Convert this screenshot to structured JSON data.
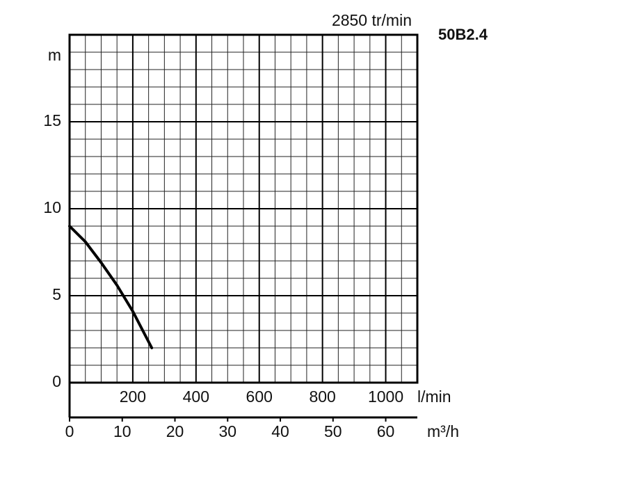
{
  "chart_data": {
    "type": "line",
    "title": "50B2.4",
    "subtitle": "2850 tr/min",
    "y_label": "m",
    "x_label": "l/min",
    "x2_label": "m³/h",
    "x": [
      0,
      50,
      100,
      150,
      200,
      260
    ],
    "series": [
      {
        "color": "#000000",
        "values": [
          9,
          8.1,
          6.9,
          5.6,
          4.1,
          2
        ]
      }
    ],
    "xlim": [
      0,
      1100
    ],
    "xticks": [
      200,
      400,
      600,
      800,
      1000
    ],
    "x2lim": [
      0,
      66
    ],
    "x2ticks": [
      0,
      10,
      20,
      30,
      40,
      50,
      60
    ],
    "ylim": [
      0,
      20
    ],
    "yticks": [
      0,
      5,
      10,
      15
    ],
    "grid": true,
    "x_minor_step": 50,
    "y_minor_step": 1
  }
}
